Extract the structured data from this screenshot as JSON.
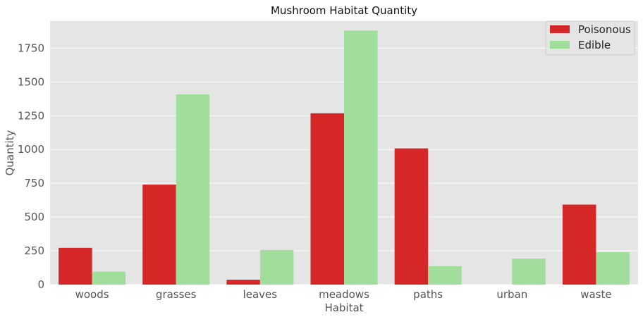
{
  "chart_data": {
    "type": "bar",
    "title": "Mushroom Habitat Quantity",
    "xlabel": "Habitat",
    "ylabel": "Quantity",
    "categories": [
      "woods",
      "grasses",
      "leaves",
      "meadows",
      "paths",
      "urban",
      "waste"
    ],
    "series": [
      {
        "name": "Poisonous",
        "color": "#d62728",
        "values": [
          272,
          740,
          36,
          1268,
          1008,
          0,
          592
        ]
      },
      {
        "name": "Edible",
        "color": "#a1dd9b",
        "values": [
          96,
          1408,
          256,
          1880,
          136,
          192,
          240
        ]
      }
    ],
    "ylim": [
      0,
      1950
    ],
    "yticks": [
      0,
      250,
      500,
      750,
      1000,
      1250,
      1500,
      1750
    ],
    "grid": true,
    "legend_position": "top-right",
    "background": "#e5e5e5",
    "gridline_color": "#ffffff"
  }
}
